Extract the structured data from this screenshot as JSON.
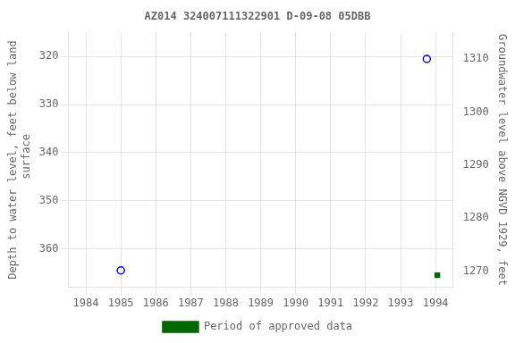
{
  "chart_data": {
    "type": "scatter",
    "title": "AZ014 324007111322901 D-09-08 05DBB",
    "y_label": "Depth to water level, feet below land\n surface",
    "y2_label": "Groundwater level above NGVD 1929, feet",
    "xlim": [
      1983.5,
      1994.5
    ],
    "xticks": [
      1984,
      1985,
      1986,
      1987,
      1988,
      1989,
      1990,
      1991,
      1992,
      1993,
      1994
    ],
    "ylim": [
      368,
      315
    ],
    "yticks": [
      320,
      330,
      340,
      350,
      360
    ],
    "y2lim": [
      1267,
      1315
    ],
    "y2ticks": [
      1310,
      1300,
      1290,
      1280,
      1270
    ],
    "grid": true,
    "legend": "bottom",
    "series": [
      {
        "color": "#0000cc",
        "marker": "circle",
        "x": [
          1985.0,
          1993.75
        ],
        "values": [
          364.5,
          320.5
        ]
      },
      {
        "name": "Period of approved data",
        "color": "#006600",
        "marker": "square",
        "x": [
          1994.05
        ],
        "values": [
          365.5
        ]
      }
    ]
  }
}
